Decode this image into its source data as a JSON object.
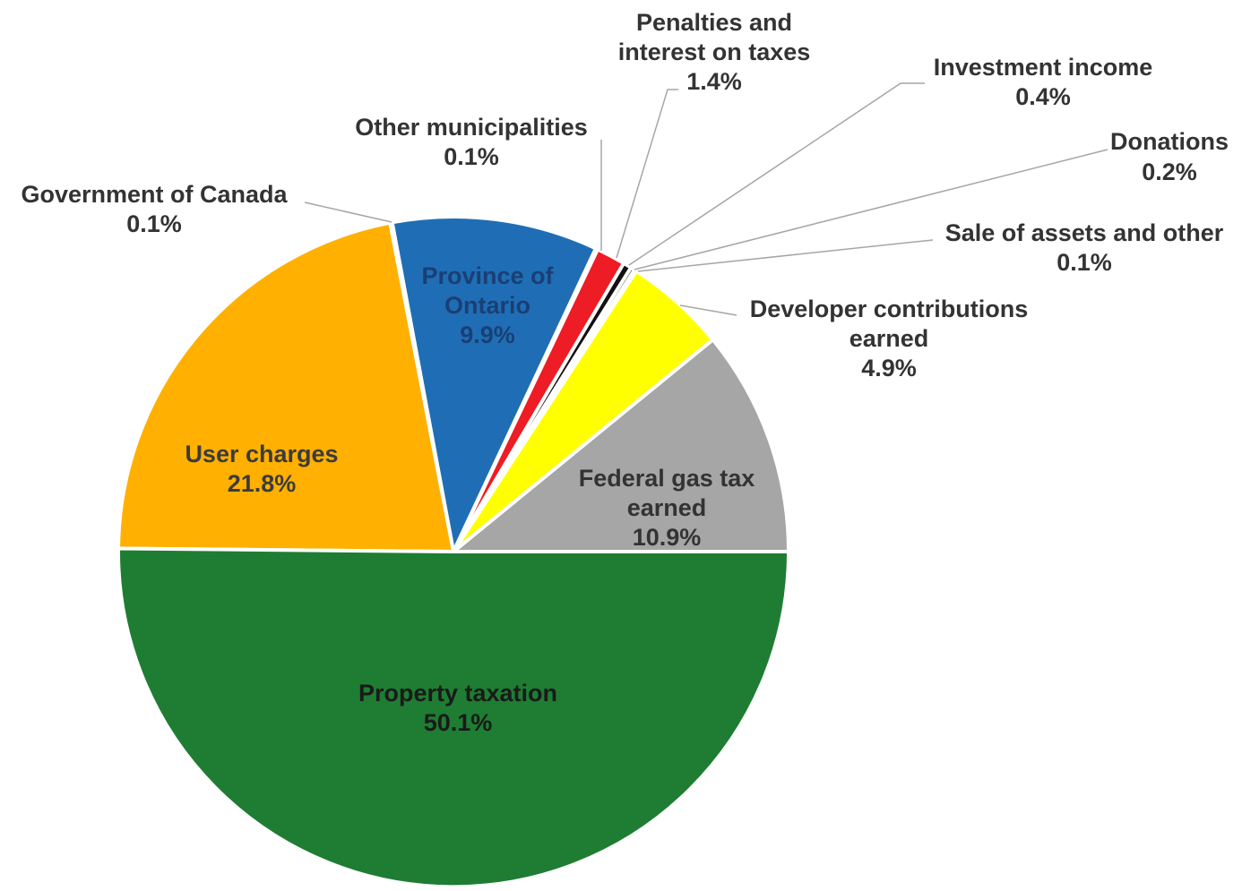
{
  "chart_data": {
    "type": "pie",
    "start_angle_deg": 0,
    "direction": "counterclockwise",
    "slices": [
      {
        "name": "Federal gas tax earned",
        "label_lines": [
          "Federal gas tax",
          "earned"
        ],
        "value": 10.9,
        "value_label": "10.9%",
        "color": "#a6a6a6",
        "label_color": "#333333",
        "label_placement": "inside"
      },
      {
        "name": "Developer contributions earned",
        "label_lines": [
          "Developer contributions",
          "earned"
        ],
        "value": 4.9,
        "value_label": "4.9%",
        "color": "#ffff00",
        "label_color": "#333333",
        "label_placement": "outside"
      },
      {
        "name": "Sale of assets and other",
        "label_lines": [
          "Sale of assets and other"
        ],
        "value": 0.1,
        "value_label": "0.1%",
        "color": "#dbe9f6",
        "label_color": "#333333",
        "label_placement": "outside"
      },
      {
        "name": "Donations",
        "label_lines": [
          "Donations"
        ],
        "value": 0.2,
        "value_label": "0.2%",
        "color": "#3d3d3d",
        "label_color": "#333333",
        "label_placement": "outside"
      },
      {
        "name": "Investment income",
        "label_lines": [
          "Investment income"
        ],
        "value": 0.4,
        "value_label": "0.4%",
        "color": "#111111",
        "label_color": "#333333",
        "label_placement": "outside"
      },
      {
        "name": "Penalties and interest on taxes",
        "label_lines": [
          "Penalties and",
          "interest on taxes"
        ],
        "value": 1.4,
        "value_label": "1.4%",
        "color": "#ee1c25",
        "label_color": "#333333",
        "label_placement": "outside"
      },
      {
        "name": "Other municipalities",
        "label_lines": [
          "Other municipalities"
        ],
        "value": 0.1,
        "value_label": "0.1%",
        "color": "#8db4e2",
        "label_color": "#333333",
        "label_placement": "outside"
      },
      {
        "name": "Province of Ontario",
        "label_lines": [
          "Province of",
          "Ontario"
        ],
        "value": 9.9,
        "value_label": "9.9%",
        "color": "#1f6eb5",
        "label_color": "#1a3f75",
        "label_placement": "inside"
      },
      {
        "name": "Government of Canada",
        "label_lines": [
          "Government of Canada"
        ],
        "value": 0.1,
        "value_label": "0.1%",
        "color": "#4c7ab8",
        "label_color": "#333333",
        "label_placement": "outside"
      },
      {
        "name": "User charges",
        "label_lines": [
          "User charges"
        ],
        "value": 21.8,
        "value_label": "21.8%",
        "color": "#ffb000",
        "label_color": "#3b3b3b",
        "label_placement": "inside"
      },
      {
        "name": "Property taxation",
        "label_lines": [
          "Property taxation"
        ],
        "value": 50.1,
        "value_label": "50.1%",
        "color": "#1e7d32",
        "label_color": "#1a1a1a",
        "label_placement": "inside"
      }
    ]
  }
}
